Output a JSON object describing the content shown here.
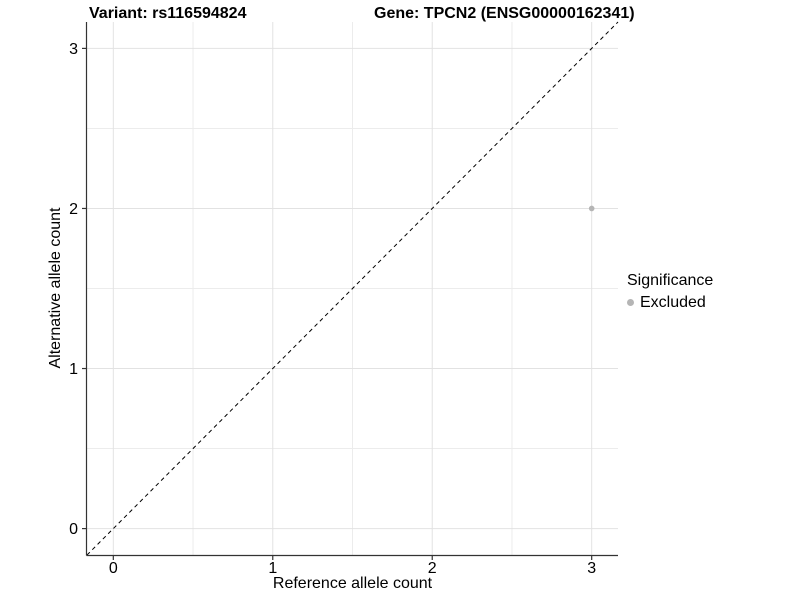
{
  "titles": {
    "left": "Variant: rs116594824",
    "right": "Gene: TPCN2 (ENSG00000162341)"
  },
  "chart_data": {
    "type": "scatter",
    "xlabel": "Reference allele count",
    "ylabel": "Alternative allele count",
    "xlim": [
      -0.165,
      3.165
    ],
    "ylim": [
      -0.165,
      3.165
    ],
    "xticks": [
      0,
      1,
      2,
      3
    ],
    "yticks": [
      0,
      1,
      2,
      3
    ],
    "x_minor_gridlines": [
      0.5,
      1.5,
      2.5
    ],
    "y_minor_gridlines": [
      0.5,
      1.5,
      2.5
    ],
    "grid": true,
    "legend_position": "right",
    "identity_line": {
      "style": "dashed",
      "from": [
        -0.165,
        -0.165
      ],
      "to": [
        3.165,
        3.165
      ]
    },
    "series": [
      {
        "name": "Excluded",
        "color": "#b5b5b5",
        "points": [
          {
            "x": 3,
            "y": 2
          }
        ]
      }
    ],
    "legend": {
      "title": "Significance",
      "entries": [
        {
          "label": "Excluded",
          "color": "#b5b5b5"
        }
      ]
    }
  },
  "colors": {
    "background": "#ffffff",
    "grid_major": "#e2e2e2",
    "grid_minor": "#ececec",
    "axis_line": "#333333",
    "tick_text": "#000000",
    "dashed_line": "#000000",
    "point": "#b5b5b5"
  }
}
